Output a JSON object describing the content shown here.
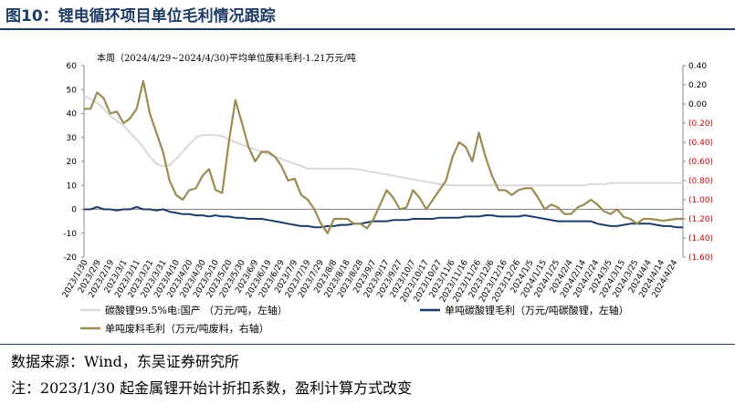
{
  "title": "图10：锂电循环项目单位毛利情况跟踪",
  "source": "数据来源：Wind，东吴证券研究所",
  "footnote": "注：2023/1/30 起金属锂开始计折扣系数，盈利计算方式改变",
  "chart_data": {
    "type": "line",
    "annotation": "本周（2024/4/29~2024/4/30)平均单位废料毛利-1.21万元/吨",
    "left_axis": {
      "ylim": [
        -20,
        60
      ],
      "ticks": [
        "60",
        "50",
        "40",
        "30",
        "20",
        "10",
        "0",
        "-10",
        "-20"
      ]
    },
    "right_axis": {
      "ylim": [
        -1.6,
        0.4
      ],
      "ticks": [
        "0.40",
        "0.20",
        "0.00",
        "(0.20)",
        "(0.40)",
        "(0.60)",
        "(0.80)",
        "(1.00)",
        "(1.20)",
        "(1.40)",
        "(1.60)"
      ]
    },
    "grid": false,
    "legend_position": "bottom",
    "x_labels": [
      "2023/1/30",
      "2023/2/9",
      "2023/2/19",
      "2023/3/1",
      "2023/3/11",
      "2023/3/21",
      "2023/3/31",
      "2023/4/10",
      "2023/4/20",
      "2023/4/30",
      "2023/5/10",
      "2023/5/20",
      "2023/5/30",
      "2023/6/9",
      "2023/6/19",
      "2023/6/29",
      "2023/7/9",
      "2023/7/19",
      "2023/7/29",
      "2023/8/8",
      "2023/8/18",
      "2023/8/28",
      "2023/9/7",
      "2023/9/17",
      "2023/9/27",
      "2023/10/7",
      "2023/10/17",
      "2023/10/27",
      "2023/11/6",
      "2023/11/16",
      "2023/11/26",
      "2023/12/6",
      "2023/12/16",
      "2023/12/26",
      "2024/1/5",
      "2024/1/15",
      "2024/1/25",
      "2024/2/4",
      "2024/2/14",
      "2024/2/24",
      "2024/3/5",
      "2024/3/15",
      "2024/3/25",
      "2024/4/4",
      "2024/4/14",
      "2024/4/24"
    ],
    "series": [
      {
        "name": "碳酸锂99.5%电:国产 （万元/吨，左轴）",
        "axis": "left",
        "color": "#d9d9d9",
        "values": [
          47.5,
          46,
          44.5,
          42,
          39,
          37,
          35,
          32,
          29,
          26,
          22,
          19,
          18,
          18.5,
          21,
          24,
          27,
          30,
          31,
          31,
          31,
          30.5,
          29,
          28,
          27,
          26,
          25,
          24,
          23,
          22,
          21,
          20,
          19,
          18,
          17,
          17,
          17,
          17,
          17,
          17,
          17,
          17,
          16.5,
          16,
          15.5,
          15,
          14.5,
          14,
          13.5,
          13,
          12.5,
          12,
          11.5,
          11,
          10.5,
          10.2,
          10,
          10,
          10,
          10,
          10,
          10,
          10,
          10,
          10,
          10,
          10,
          10,
          10,
          10,
          10,
          10,
          10,
          10,
          10,
          10,
          10,
          10.5,
          10.5,
          10.5,
          11,
          11,
          11,
          11,
          11,
          11,
          11,
          11,
          11,
          11,
          11,
          11
        ]
      },
      {
        "name": "单吨碳酸锂毛利（万元/吨碳酸锂，左轴）",
        "axis": "left",
        "color": "#1f3c66",
        "values": [
          0,
          0,
          1,
          0,
          0,
          -0.5,
          0,
          0,
          1,
          0,
          0,
          -0.5,
          0,
          -1,
          -1.5,
          -2,
          -2,
          -2.5,
          -2.5,
          -3,
          -2.5,
          -3,
          -3,
          -3.5,
          -3.5,
          -4,
          -4,
          -4,
          -4.5,
          -5,
          -5.5,
          -6,
          -6.5,
          -7,
          -7,
          -7.5,
          -7.5,
          -7,
          -7,
          -6.5,
          -6.5,
          -6,
          -6,
          -5.5,
          -5,
          -5,
          -5,
          -4.5,
          -4.5,
          -4.5,
          -4,
          -4,
          -4,
          -4,
          -3.5,
          -3.5,
          -3.5,
          -3.5,
          -3,
          -3,
          -3,
          -2.5,
          -2.5,
          -3,
          -3,
          -3,
          -3,
          -2.5,
          -3,
          -3.5,
          -4,
          -4.5,
          -5,
          -5,
          -5,
          -5,
          -5,
          -5,
          -6,
          -6.5,
          -7,
          -7,
          -6.5,
          -6,
          -6,
          -6,
          -6,
          -6.5,
          -7,
          -7,
          -7.5,
          -7.5
        ]
      },
      {
        "name": "单吨废料毛利（万元/吨废料，右轴）",
        "axis": "right",
        "color": "#9a8c52",
        "values": [
          -0.05,
          -0.05,
          0.12,
          0.06,
          -0.1,
          -0.08,
          -0.2,
          -0.15,
          -0.05,
          0.24,
          -0.1,
          -0.3,
          -0.5,
          -0.8,
          -0.95,
          -1.0,
          -0.9,
          -0.88,
          -0.75,
          -0.68,
          -0.9,
          -0.93,
          -0.4,
          0.04,
          -0.2,
          -0.45,
          -0.6,
          -0.5,
          -0.5,
          -0.55,
          -0.65,
          -0.8,
          -0.78,
          -0.95,
          -1.0,
          -1.1,
          -1.25,
          -1.35,
          -1.2,
          -1.2,
          -1.2,
          -1.25,
          -1.25,
          -1.3,
          -1.2,
          -1.05,
          -0.9,
          -0.98,
          -1.1,
          -1.08,
          -0.9,
          -0.98,
          -1.1,
          -1.0,
          -0.9,
          -0.8,
          -0.55,
          -0.4,
          -0.45,
          -0.6,
          -0.3,
          -0.55,
          -0.75,
          -0.9,
          -0.9,
          -0.95,
          -0.9,
          -0.88,
          -0.88,
          -0.98,
          -1.1,
          -1.05,
          -1.08,
          -1.15,
          -1.15,
          -1.08,
          -1.05,
          -1.0,
          -1.05,
          -1.12,
          -1.15,
          -1.1,
          -1.18,
          -1.2,
          -1.25,
          -1.2,
          -1.2,
          -1.21,
          -1.22,
          -1.21,
          -1.2,
          -1.2
        ]
      }
    ]
  }
}
